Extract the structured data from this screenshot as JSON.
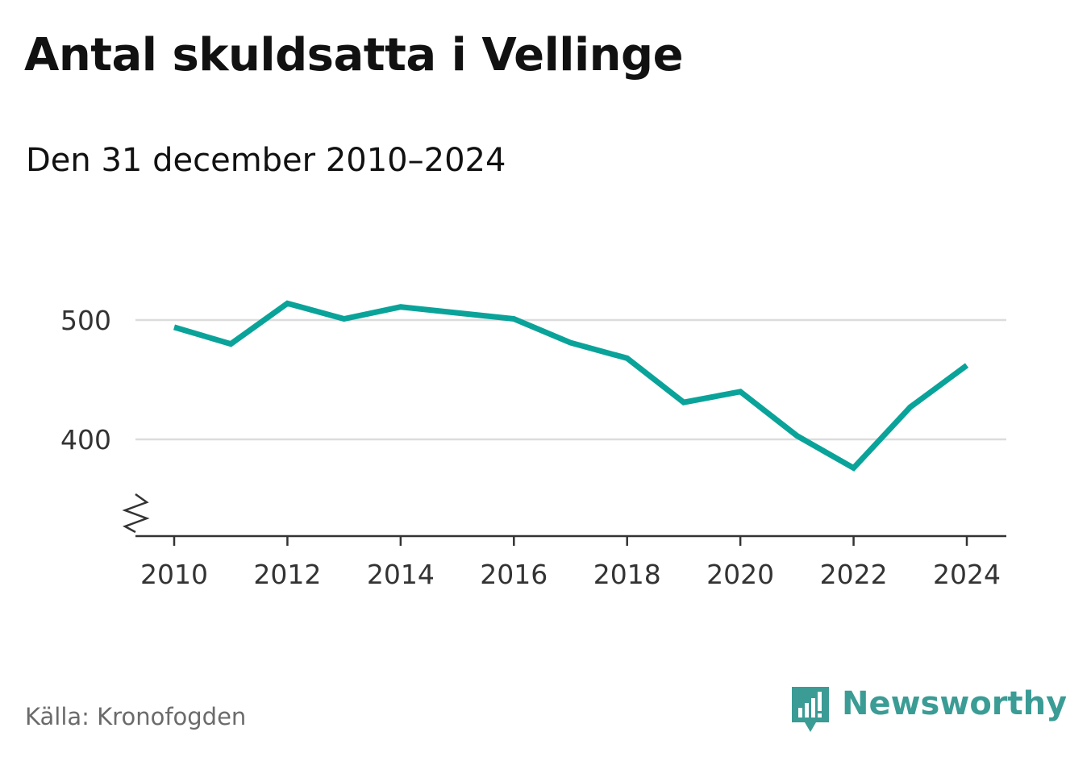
{
  "title": "Antal skuldsatta i Vellinge",
  "subtitle": "Den 31 december 2010–2024",
  "source": "Källa: Kronofogden",
  "brand": {
    "name": "Newsworthy",
    "icon": "newsworthy-logo-icon",
    "color": "#3a9c95"
  },
  "chart_data": {
    "type": "line",
    "x": [
      2010,
      2011,
      2012,
      2013,
      2014,
      2015,
      2016,
      2017,
      2018,
      2019,
      2020,
      2021,
      2022,
      2023,
      2024
    ],
    "series": [
      {
        "values": [
          494,
          480,
          514,
          501,
          511,
          506,
          501,
          481,
          468,
          431,
          440,
          403,
          376,
          427,
          462
        ],
        "color": "#0aa39a"
      }
    ],
    "x_ticks": [
      "2010",
      "2012",
      "2014",
      "2016",
      "2018",
      "2020",
      "2022",
      "2024"
    ],
    "y_ticks": [
      "400",
      "500"
    ],
    "xlabel": "",
    "ylabel": "",
    "xlim": [
      2010,
      2024
    ],
    "ylim": [
      320,
      550
    ],
    "y_axis_break": true,
    "grid": "horizontal"
  }
}
